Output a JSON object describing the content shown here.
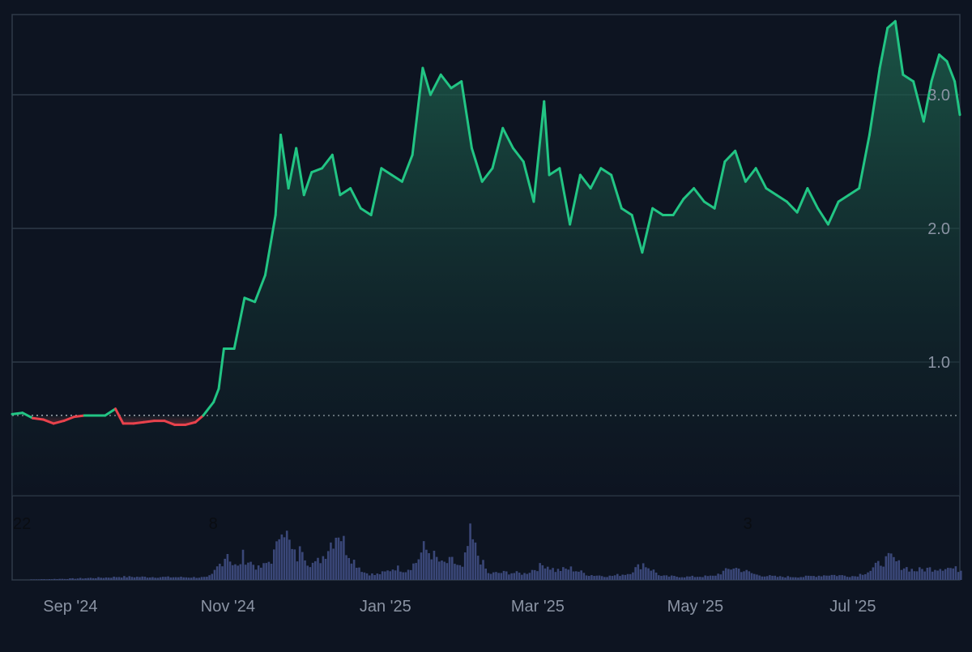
{
  "chart_data": {
    "type": "area",
    "title": "",
    "xlabel": "",
    "ylabel": "",
    "baseline": 0.6,
    "ylim": [
      0,
      3.6
    ],
    "y_ticks": [
      {
        "value": 1.0,
        "label": "1.0"
      },
      {
        "value": 2.0,
        "label": "2.0"
      },
      {
        "value": 3.0,
        "label": "3.0"
      }
    ],
    "x_ticks": [
      {
        "date": "2024-09-01",
        "label": "Sep '24"
      },
      {
        "date": "2024-11-01",
        "label": "Nov '24"
      },
      {
        "date": "2025-01-01",
        "label": "Jan '25"
      },
      {
        "date": "2025-03-01",
        "label": "Mar '25"
      },
      {
        "date": "2025-05-01",
        "label": "May '25"
      },
      {
        "date": "2025-07-01",
        "label": "Jul '25"
      }
    ],
    "volume_labels": [
      {
        "date": "2024-08-22",
        "label": "22"
      },
      {
        "date": "2024-11-08",
        "label": "8"
      },
      {
        "date": "2025-06-03",
        "label": "3"
      }
    ],
    "grid": true,
    "colors": {
      "up": "#22c584",
      "down": "#e8424c",
      "volume": "#3a4778",
      "grid": "#2e3a48",
      "baseline": "#c9cfd8"
    },
    "x_range": [
      "2024-08-22",
      "2025-08-24"
    ],
    "series": [
      {
        "values": [
          [
            "2024-08-22",
            0.61
          ],
          [
            "2024-08-26",
            0.62
          ],
          [
            "2024-08-30",
            0.58
          ],
          [
            "2024-09-03",
            0.57
          ],
          [
            "2024-09-07",
            0.54
          ],
          [
            "2024-09-11",
            0.56
          ],
          [
            "2024-09-15",
            0.59
          ],
          [
            "2024-09-19",
            0.6
          ],
          [
            "2024-09-23",
            0.6
          ],
          [
            "2024-09-27",
            0.6
          ],
          [
            "2024-10-01",
            0.65
          ],
          [
            "2024-10-04",
            0.54
          ],
          [
            "2024-10-08",
            0.54
          ],
          [
            "2024-10-12",
            0.55
          ],
          [
            "2024-10-16",
            0.56
          ],
          [
            "2024-10-20",
            0.56
          ],
          [
            "2024-10-24",
            0.53
          ],
          [
            "2024-10-28",
            0.53
          ],
          [
            "2024-11-01",
            0.55
          ],
          [
            "2024-11-04",
            0.6
          ],
          [
            "2024-11-08",
            0.7
          ],
          [
            "2024-11-10",
            0.8
          ],
          [
            "2024-11-12",
            1.1
          ],
          [
            "2024-11-16",
            1.1
          ],
          [
            "2024-11-20",
            1.48
          ],
          [
            "2024-11-24",
            1.45
          ],
          [
            "2024-11-28",
            1.65
          ],
          [
            "2024-12-02",
            2.1
          ],
          [
            "2024-12-04",
            2.7
          ],
          [
            "2024-12-07",
            2.3
          ],
          [
            "2024-12-10",
            2.6
          ],
          [
            "2024-12-13",
            2.25
          ],
          [
            "2024-12-16",
            2.42
          ],
          [
            "2024-12-20",
            2.45
          ],
          [
            "2024-12-24",
            2.55
          ],
          [
            "2024-12-27",
            2.25
          ],
          [
            "2024-12-31",
            2.3
          ],
          [
            "2025-01-04",
            2.15
          ],
          [
            "2025-01-08",
            2.1
          ],
          [
            "2025-01-12",
            2.45
          ],
          [
            "2025-01-16",
            2.4
          ],
          [
            "2025-01-20",
            2.35
          ],
          [
            "2025-01-24",
            2.55
          ],
          [
            "2025-01-28",
            3.2
          ],
          [
            "2025-01-31",
            3.0
          ],
          [
            "2025-02-04",
            3.15
          ],
          [
            "2025-02-08",
            3.05
          ],
          [
            "2025-02-12",
            3.1
          ],
          [
            "2025-02-16",
            2.6
          ],
          [
            "2025-02-20",
            2.35
          ],
          [
            "2025-02-24",
            2.45
          ],
          [
            "2025-02-28",
            2.75
          ],
          [
            "2025-03-04",
            2.6
          ],
          [
            "2025-03-08",
            2.5
          ],
          [
            "2025-03-12",
            2.2
          ],
          [
            "2025-03-16",
            2.95
          ],
          [
            "2025-03-18",
            2.4
          ],
          [
            "2025-03-22",
            2.45
          ],
          [
            "2025-03-26",
            2.03
          ],
          [
            "2025-03-30",
            2.4
          ],
          [
            "2025-04-03",
            2.3
          ],
          [
            "2025-04-07",
            2.45
          ],
          [
            "2025-04-11",
            2.4
          ],
          [
            "2025-04-15",
            2.15
          ],
          [
            "2025-04-19",
            2.1
          ],
          [
            "2025-04-23",
            1.82
          ],
          [
            "2025-04-27",
            2.15
          ],
          [
            "2025-05-01",
            2.1
          ],
          [
            "2025-05-05",
            2.1
          ],
          [
            "2025-05-09",
            2.22
          ],
          [
            "2025-05-13",
            2.3
          ],
          [
            "2025-05-17",
            2.2
          ],
          [
            "2025-05-21",
            2.15
          ],
          [
            "2025-05-25",
            2.5
          ],
          [
            "2025-05-29",
            2.58
          ],
          [
            "2025-06-02",
            2.35
          ],
          [
            "2025-06-06",
            2.45
          ],
          [
            "2025-06-10",
            2.3
          ],
          [
            "2025-06-14",
            2.25
          ],
          [
            "2025-06-18",
            2.2
          ],
          [
            "2025-06-22",
            2.12
          ],
          [
            "2025-06-26",
            2.3
          ],
          [
            "2025-06-30",
            2.15
          ],
          [
            "2025-07-04",
            2.03
          ],
          [
            "2025-07-08",
            2.2
          ],
          [
            "2025-07-12",
            2.25
          ],
          [
            "2025-07-16",
            2.3
          ],
          [
            "2025-07-20",
            2.7
          ],
          [
            "2025-07-24",
            3.2
          ],
          [
            "2025-07-27",
            3.5
          ],
          [
            "2025-07-30",
            3.55
          ],
          [
            "2025-08-02",
            3.15
          ],
          [
            "2025-08-06",
            3.1
          ],
          [
            "2025-08-10",
            2.8
          ],
          [
            "2025-08-13",
            3.1
          ],
          [
            "2025-08-16",
            3.3
          ],
          [
            "2025-08-19",
            3.25
          ],
          [
            "2025-08-22",
            3.1
          ],
          [
            "2025-08-24",
            2.85
          ]
        ]
      }
    ],
    "volume": [
      [
        "2024-08-22",
        0.0
      ],
      [
        "2024-09-13",
        0.02
      ],
      [
        "2024-09-28",
        0.04
      ],
      [
        "2024-10-02",
        0.05
      ],
      [
        "2024-11-05",
        0.04
      ],
      [
        "2024-11-07",
        0.08
      ],
      [
        "2024-11-09",
        0.2
      ],
      [
        "2024-11-11",
        0.3
      ],
      [
        "2024-11-13",
        0.45
      ],
      [
        "2024-11-15",
        0.25
      ],
      [
        "2024-11-17",
        0.2
      ],
      [
        "2024-11-19",
        0.38
      ],
      [
        "2024-11-21",
        0.3
      ],
      [
        "2024-11-23",
        0.25
      ],
      [
        "2024-11-25",
        0.18
      ],
      [
        "2024-11-27",
        0.22
      ],
      [
        "2024-11-30",
        0.33
      ],
      [
        "2024-12-02",
        0.5
      ],
      [
        "2024-12-04",
        1.0
      ],
      [
        "2024-12-06",
        0.7
      ],
      [
        "2024-12-08",
        0.45
      ],
      [
        "2024-12-10",
        0.35
      ],
      [
        "2024-12-12",
        0.55
      ],
      [
        "2024-12-14",
        0.3
      ],
      [
        "2024-12-17",
        0.25
      ],
      [
        "2024-12-20",
        0.38
      ],
      [
        "2024-12-23",
        0.6
      ],
      [
        "2024-12-26",
        0.8
      ],
      [
        "2024-12-29",
        0.5
      ],
      [
        "2025-01-01",
        0.3
      ],
      [
        "2025-01-05",
        0.12
      ],
      [
        "2025-01-09",
        0.08
      ],
      [
        "2025-01-13",
        0.12
      ],
      [
        "2025-01-17",
        0.2
      ],
      [
        "2025-01-21",
        0.15
      ],
      [
        "2025-01-25",
        0.28
      ],
      [
        "2025-01-28",
        0.5
      ],
      [
        "2025-01-31",
        0.42
      ],
      [
        "2025-02-04",
        0.25
      ],
      [
        "2025-02-08",
        0.3
      ],
      [
        "2025-02-12",
        0.18
      ],
      [
        "2025-02-15",
        0.7
      ],
      [
        "2025-02-18",
        0.4
      ],
      [
        "2025-02-22",
        0.1
      ],
      [
        "2025-03-01",
        0.12
      ],
      [
        "2025-03-08",
        0.1
      ],
      [
        "2025-03-16",
        0.25
      ],
      [
        "2025-03-20",
        0.15
      ],
      [
        "2025-03-26",
        0.18
      ],
      [
        "2025-04-02",
        0.08
      ],
      [
        "2025-04-10",
        0.06
      ],
      [
        "2025-04-17",
        0.1
      ],
      [
        "2025-04-23",
        0.26
      ],
      [
        "2025-04-30",
        0.06
      ],
      [
        "2025-05-10",
        0.05
      ],
      [
        "2025-05-20",
        0.06
      ],
      [
        "2025-05-28",
        0.2
      ],
      [
        "2025-06-06",
        0.08
      ],
      [
        "2025-06-14",
        0.05
      ],
      [
        "2025-06-24",
        0.05
      ],
      [
        "2025-07-04",
        0.08
      ],
      [
        "2025-07-14",
        0.06
      ],
      [
        "2025-07-20",
        0.15
      ],
      [
        "2025-07-24",
        0.28
      ],
      [
        "2025-07-28",
        0.35
      ],
      [
        "2025-08-01",
        0.22
      ],
      [
        "2025-08-06",
        0.15
      ],
      [
        "2025-08-12",
        0.18
      ],
      [
        "2025-08-18",
        0.2
      ],
      [
        "2025-08-24",
        0.16
      ]
    ]
  }
}
